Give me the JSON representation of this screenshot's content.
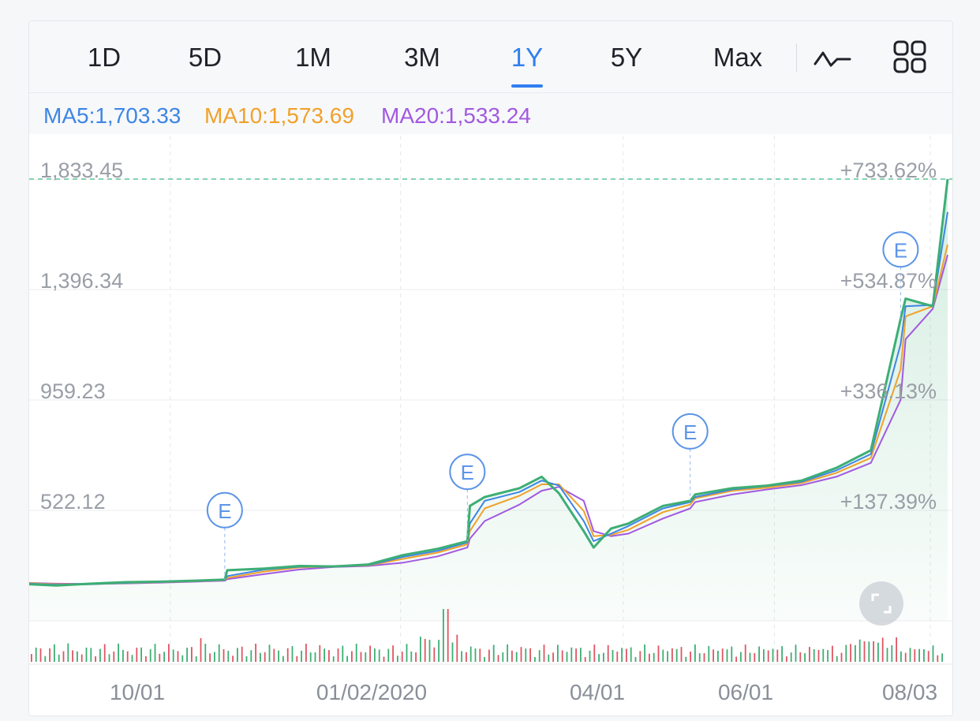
{
  "tabs": [
    {
      "label": "1D",
      "active": false
    },
    {
      "label": "5D",
      "active": false
    },
    {
      "label": "1M",
      "active": false
    },
    {
      "label": "3M",
      "active": false
    },
    {
      "label": "1Y",
      "active": true
    },
    {
      "label": "5Y",
      "active": false
    },
    {
      "label": "Max",
      "active": false
    }
  ],
  "icons": {
    "chart_type": "line-chart-icon",
    "grid": "grid-icon",
    "fullscreen": "fullscreen-icon",
    "earnings": "earnings-marker-icon"
  },
  "colors": {
    "price": "#3dae74",
    "ma5": "#3d86e5",
    "ma10": "#f0a12a",
    "ma20": "#a259e0",
    "active_tab": "#2f7ff0",
    "last_price_line": "#5cc39a"
  },
  "indicators": {
    "ma5": "MA5:1,703.33",
    "ma10": "MA10:1,573.69",
    "ma20": "MA20:1,533.24"
  },
  "chart_data": {
    "type": "line",
    "x": [
      "2019-08-05",
      "2019-08-16",
      "2019-08-30",
      "2019-09-13",
      "2019-09-27",
      "2019-10-11",
      "2019-10-23",
      "2019-10-24",
      "2019-11-08",
      "2019-11-22",
      "2019-12-06",
      "2019-12-20",
      "2020-01-03",
      "2020-01-17",
      "2020-01-29",
      "2020-01-30",
      "2020-02-05",
      "2020-02-19",
      "2020-02-28",
      "2020-03-06",
      "2020-03-16",
      "2020-03-20",
      "2020-03-27",
      "2020-04-03",
      "2020-04-17",
      "2020-04-28",
      "2020-04-30",
      "2020-05-15",
      "2020-05-29",
      "2020-06-12",
      "2020-06-26",
      "2020-07-10",
      "2020-07-22",
      "2020-07-24",
      "2020-08-04",
      "2020-08-10"
    ],
    "series": [
      {
        "key": "price",
        "values": [
          230,
          225,
          232,
          238,
          240,
          244,
          248,
          285,
          292,
          302,
          300,
          308,
          345,
          370,
          400,
          540,
          575,
          610,
          655,
          590,
          440,
          375,
          450,
          470,
          540,
          560,
          585,
          610,
          620,
          640,
          690,
          760,
          1280,
          1360,
          1330,
          1833
        ]
      },
      {
        "key": "ma5",
        "values": [
          232,
          228,
          230,
          235,
          239,
          243,
          247,
          262,
          288,
          299,
          302,
          305,
          338,
          362,
          395,
          470,
          560,
          595,
          640,
          620,
          480,
          400,
          430,
          460,
          530,
          555,
          575,
          605,
          618,
          635,
          680,
          745,
          1180,
          1330,
          1335,
          1703
        ]
      },
      {
        "key": "ma10",
        "values": [
          234,
          230,
          230,
          234,
          238,
          242,
          246,
          255,
          280,
          296,
          301,
          304,
          330,
          355,
          388,
          440,
          530,
          580,
          625,
          625,
          520,
          420,
          425,
          445,
          515,
          545,
          570,
          600,
          612,
          630,
          670,
          730,
          1080,
          1290,
          1330,
          1574
        ]
      },
      {
        "key": "ma20",
        "values": [
          235,
          232,
          231,
          233,
          236,
          240,
          244,
          250,
          270,
          288,
          298,
          302,
          315,
          340,
          375,
          410,
          480,
          545,
          600,
          615,
          560,
          440,
          420,
          430,
          490,
          530,
          555,
          585,
          605,
          622,
          655,
          710,
          960,
          1200,
          1320,
          1533
        ]
      }
    ],
    "y_ticks": [
      "1,833.45",
      "1,396.34",
      "959.23",
      "522.12"
    ],
    "pct_ticks": [
      "+733.62%",
      "+534.87%",
      "+336.13%",
      "+137.39%"
    ],
    "x_ticks": [
      "10/01",
      "01/02/2020",
      "04/01",
      "06/01",
      "08/03"
    ],
    "ylim": [
      85,
      1833.45
    ],
    "last_value": 1833.45,
    "earnings_markers": [
      "2019-10-23",
      "2020-01-29",
      "2020-04-28",
      "2020-07-22"
    ],
    "earnings_label": "E",
    "grid": true
  }
}
